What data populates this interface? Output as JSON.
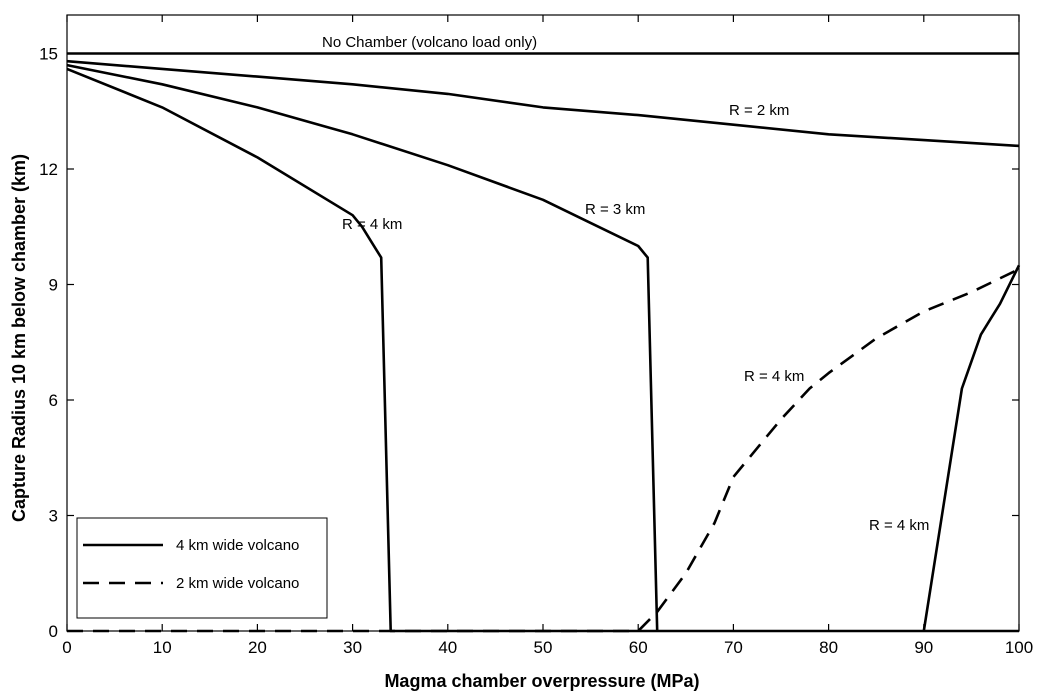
{
  "chart_data": {
    "type": "line",
    "xlabel": "Magma chamber overpressure (MPa)",
    "ylabel": "Capture Radius 10 km below chamber (km)",
    "xlim": [
      0,
      100
    ],
    "ylim": [
      0,
      16
    ],
    "xticks": [
      0,
      10,
      20,
      30,
      40,
      50,
      60,
      70,
      80,
      90,
      100
    ],
    "yticks": [
      0,
      3,
      6,
      9,
      12,
      15
    ],
    "grid": false,
    "legend_position": "bottom-left",
    "legend": [
      {
        "label": "4 km wide volcano",
        "style": "solid"
      },
      {
        "label": "2 km wide volcano",
        "style": "dashed"
      }
    ],
    "series": [
      {
        "group": "4 km wide volcano",
        "style": "solid",
        "points": [
          [
            0,
            15
          ],
          [
            100,
            15
          ]
        ]
      },
      {
        "group": "4 km wide volcano",
        "style": "solid",
        "points": [
          [
            0,
            14.8
          ],
          [
            10,
            14.6
          ],
          [
            20,
            14.4
          ],
          [
            30,
            14.2
          ],
          [
            40,
            13.95
          ],
          [
            50,
            13.6
          ],
          [
            60,
            13.4
          ],
          [
            70,
            13.15
          ],
          [
            80,
            12.9
          ],
          [
            90,
            12.75
          ],
          [
            100,
            12.6
          ]
        ]
      },
      {
        "group": "4 km wide volcano",
        "style": "solid",
        "points": [
          [
            0,
            14.7
          ],
          [
            10,
            14.2
          ],
          [
            20,
            13.6
          ],
          [
            30,
            12.9
          ],
          [
            40,
            12.1
          ],
          [
            50,
            11.2
          ],
          [
            55,
            10.6
          ],
          [
            60,
            10.0
          ],
          [
            61,
            9.7
          ],
          [
            62,
            0
          ]
        ]
      },
      {
        "group": "4 km wide volcano",
        "style": "solid",
        "points": [
          [
            0,
            14.6
          ],
          [
            10,
            13.6
          ],
          [
            20,
            12.3
          ],
          [
            30,
            10.8
          ],
          [
            31,
            10.5
          ],
          [
            32,
            10.1
          ],
          [
            33,
            9.7
          ],
          [
            34,
            0
          ],
          [
            100,
            0
          ]
        ]
      },
      {
        "group": "4 km wide volcano",
        "style": "solid",
        "points": [
          [
            90,
            0
          ],
          [
            94,
            6.3
          ],
          [
            96,
            7.7
          ],
          [
            97,
            8.1
          ],
          [
            98,
            8.5
          ],
          [
            100,
            9.5
          ]
        ]
      },
      {
        "group": "2 km wide volcano",
        "style": "dashed",
        "points": [
          [
            0,
            0
          ],
          [
            60,
            0
          ],
          [
            62,
            0.5
          ],
          [
            65,
            1.5
          ],
          [
            68,
            2.8
          ],
          [
            70,
            4.0
          ],
          [
            72,
            4.6
          ],
          [
            75,
            5.5
          ],
          [
            78,
            6.3
          ],
          [
            80,
            6.7
          ],
          [
            85,
            7.6
          ],
          [
            90,
            8.3
          ],
          [
            95,
            8.8
          ],
          [
            100,
            9.4
          ]
        ]
      }
    ],
    "annotations": [
      {
        "text": "No Chamber (volcano load only)",
        "x": 0,
        "y": 0
      },
      {
        "text": "R = 2 km",
        "x": 0,
        "y": 0
      },
      {
        "text": "R = 3 km",
        "x": 0,
        "y": 0
      },
      {
        "text": "R = 4 km",
        "x": 0,
        "y": 0
      },
      {
        "text": "R = 4 km",
        "x": 0,
        "y": 0
      },
      {
        "text": "R = 4 km",
        "x": 0,
        "y": 0
      }
    ]
  }
}
